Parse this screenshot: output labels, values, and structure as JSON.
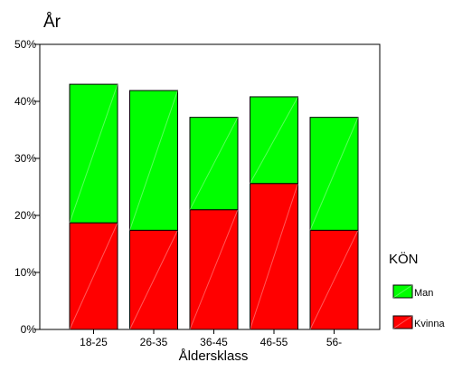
{
  "chart_data": {
    "type": "bar",
    "stacked": true,
    "title": "År",
    "xlabel": "Åldersklass",
    "ylabel": "",
    "ylim": [
      0,
      50
    ],
    "y_unit": "%",
    "yticks": [
      0,
      10,
      20,
      30,
      40,
      50
    ],
    "ytick_labels": [
      "0%",
      "10%",
      "20%",
      "30%",
      "40%",
      "50%"
    ],
    "categories": [
      "18-25",
      "26-35",
      "36-45",
      "46-55",
      "56-"
    ],
    "series": [
      {
        "name": "Kvinna",
        "color": "#ff0000",
        "values": [
          18.7,
          17.4,
          21.0,
          25.6,
          17.4
        ]
      },
      {
        "name": "Man",
        "color": "#00ff00",
        "values": [
          24.3,
          24.5,
          16.2,
          15.2,
          19.8
        ]
      }
    ],
    "grid": false,
    "legend": {
      "title": "KÖN",
      "position": "right",
      "entries": [
        "Man",
        "Kvinna"
      ]
    }
  }
}
